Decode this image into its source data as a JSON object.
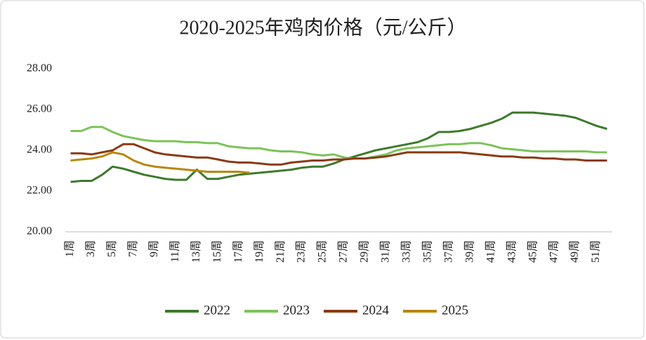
{
  "chart_data": {
    "type": "line",
    "title": "2020-2025年鸡肉价格（元/公斤）",
    "categories": [
      "1周",
      null,
      "3周",
      null,
      "5周",
      null,
      "7周",
      null,
      "9周",
      null,
      "11周",
      null,
      "13周",
      null,
      "15周",
      null,
      "17周",
      null,
      "19周",
      null,
      "21周",
      null,
      "23周",
      null,
      "25周",
      null,
      "27周",
      null,
      "29周",
      null,
      "31周",
      null,
      "33周",
      null,
      "35周",
      null,
      "37周",
      null,
      "39周",
      null,
      "41周",
      null,
      "43周",
      null,
      "45周",
      null,
      "47周",
      null,
      "49周",
      null,
      "51周",
      null
    ],
    "series": [
      {
        "name": "2022",
        "color": "#3e7a2c",
        "values": [
          22.45,
          22.5,
          22.5,
          22.8,
          23.2,
          23.1,
          22.95,
          22.8,
          22.7,
          22.6,
          22.55,
          22.55,
          23.05,
          22.6,
          22.6,
          22.7,
          22.8,
          22.85,
          22.9,
          22.95,
          23.0,
          23.05,
          23.15,
          23.2,
          23.2,
          23.35,
          23.55,
          23.7,
          23.85,
          24.0,
          24.1,
          24.2,
          24.3,
          24.4,
          24.6,
          24.9,
          24.9,
          24.95,
          25.05,
          25.2,
          25.35,
          25.55,
          25.85,
          25.85,
          25.85,
          25.8,
          25.75,
          25.7,
          25.6,
          25.4,
          25.2,
          25.05
        ]
      },
      {
        "name": "2023",
        "color": "#7cc35a",
        "values": [
          24.95,
          24.95,
          25.15,
          25.15,
          24.9,
          24.7,
          24.6,
          24.5,
          24.45,
          24.45,
          24.45,
          24.4,
          24.4,
          24.35,
          24.35,
          24.2,
          24.15,
          24.1,
          24.1,
          24.0,
          23.95,
          23.95,
          23.9,
          23.8,
          23.75,
          23.8,
          23.65,
          23.6,
          23.6,
          23.7,
          23.8,
          24.0,
          24.1,
          24.15,
          24.2,
          24.25,
          24.3,
          24.3,
          24.35,
          24.35,
          24.25,
          24.1,
          24.05,
          24.0,
          23.95,
          23.95,
          23.95,
          23.95,
          23.95,
          23.95,
          23.9,
          23.9
        ]
      },
      {
        "name": "2024",
        "color": "#8a3a12",
        "values": [
          23.85,
          23.85,
          23.8,
          23.9,
          24.0,
          24.3,
          24.3,
          24.1,
          23.9,
          23.8,
          23.75,
          23.7,
          23.65,
          23.65,
          23.55,
          23.45,
          23.4,
          23.4,
          23.35,
          23.3,
          23.3,
          23.4,
          23.45,
          23.5,
          23.5,
          23.55,
          23.55,
          23.6,
          23.6,
          23.65,
          23.7,
          23.8,
          23.9,
          23.9,
          23.9,
          23.9,
          23.9,
          23.9,
          23.85,
          23.8,
          23.75,
          23.7,
          23.7,
          23.65,
          23.65,
          23.6,
          23.6,
          23.55,
          23.55,
          23.5,
          23.5,
          23.5
        ]
      },
      {
        "name": "2025",
        "color": "#b8870c",
        "values": [
          23.5,
          23.55,
          23.6,
          23.7,
          23.9,
          23.8,
          23.5,
          23.3,
          23.2,
          23.15,
          23.1,
          23.05,
          23.0,
          22.95,
          22.95,
          22.95,
          22.95,
          22.9,
          null,
          null,
          null,
          null,
          null,
          null,
          null,
          null,
          null,
          null,
          null,
          null,
          null,
          null,
          null,
          null,
          null,
          null,
          null,
          null,
          null,
          null,
          null,
          null,
          null,
          null,
          null,
          null,
          null,
          null,
          null,
          null,
          null,
          null
        ]
      }
    ],
    "ylim": [
      20,
      28
    ],
    "yticks": [
      {
        "value": 20,
        "label": "20.00"
      },
      {
        "value": 22,
        "label": "22.00"
      },
      {
        "value": 24,
        "label": "24.00"
      },
      {
        "value": 26,
        "label": "26.00"
      },
      {
        "value": 28,
        "label": "28.00"
      }
    ],
    "legend": "bottom"
  }
}
